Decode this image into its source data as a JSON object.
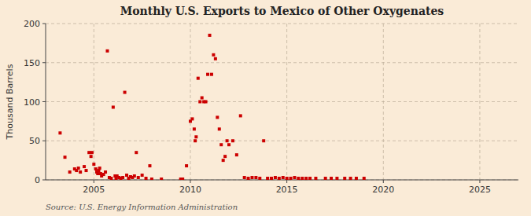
{
  "chart_data": {
    "type": "scatter",
    "title": "Monthly U.S. Exports to Mexico of Other Oxygenates",
    "ylabel": "Thousand Barrels",
    "annotations": [
      "Source: U.S. Energy Information Administration"
    ],
    "color": "#cc0000",
    "marker": "square",
    "grid": true,
    "xlim": [
      2002.5,
      2027
    ],
    "ylim": [
      0,
      200
    ],
    "xticks": [
      2005,
      2010,
      2015,
      2020,
      2025
    ],
    "yticks": [
      0,
      50,
      100,
      150,
      200
    ],
    "x": [
      2003.25,
      2003.5,
      2003.75,
      2004.0,
      2004.1,
      2004.2,
      2004.3,
      2004.5,
      2004.6,
      2004.75,
      2004.85,
      2004.9,
      2005.0,
      2005.1,
      2005.15,
      2005.2,
      2005.25,
      2005.3,
      2005.35,
      2005.4,
      2005.5,
      2005.6,
      2005.7,
      2005.8,
      2005.9,
      2006.0,
      2006.1,
      2006.15,
      2006.2,
      2006.3,
      2006.4,
      2006.5,
      2006.6,
      2006.7,
      2006.8,
      2006.9,
      2007.0,
      2007.1,
      2007.2,
      2007.3,
      2007.5,
      2007.7,
      2007.9,
      2008.0,
      2008.5,
      2009.5,
      2009.6,
      2009.8,
      2010.0,
      2010.1,
      2010.2,
      2010.25,
      2010.3,
      2010.4,
      2010.5,
      2010.6,
      2010.7,
      2010.8,
      2010.9,
      2011.0,
      2011.1,
      2011.2,
      2011.3,
      2011.4,
      2011.5,
      2011.6,
      2011.7,
      2011.8,
      2011.9,
      2012.0,
      2012.2,
      2012.4,
      2012.6,
      2012.8,
      2013.0,
      2013.2,
      2013.4,
      2013.6,
      2013.8,
      2014.0,
      2014.2,
      2014.4,
      2014.6,
      2014.8,
      2015.0,
      2015.2,
      2015.4,
      2015.6,
      2015.8,
      2016.0,
      2016.2,
      2016.5,
      2017.0,
      2017.3,
      2017.6,
      2018.0,
      2018.3,
      2018.6,
      2019.0
    ],
    "values": [
      60,
      29,
      10,
      14,
      12,
      15,
      10,
      17,
      12,
      35,
      30,
      35,
      20,
      14,
      10,
      8,
      12,
      15,
      8,
      5,
      7,
      10,
      165,
      3,
      2,
      93,
      5,
      2,
      5,
      3,
      2,
      3,
      112,
      6,
      2,
      4,
      3,
      5,
      35,
      3,
      6,
      2,
      18,
      1,
      1,
      1,
      1,
      18,
      75,
      78,
      65,
      50,
      55,
      130,
      100,
      105,
      100,
      100,
      135,
      185,
      135,
      160,
      155,
      80,
      65,
      45,
      25,
      30,
      50,
      45,
      50,
      32,
      82,
      3,
      2,
      3,
      3,
      2,
      50,
      2,
      2,
      3,
      2,
      3,
      2,
      2,
      3,
      2,
      2,
      2,
      2,
      2,
      2,
      2,
      2,
      2,
      2,
      2,
      2
    ]
  }
}
